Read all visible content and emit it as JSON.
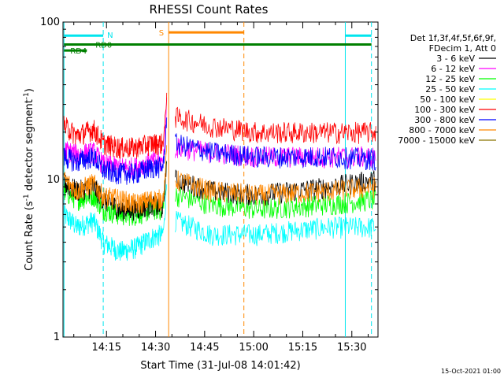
{
  "chart_data": {
    "type": "line",
    "title": "RHESSI Count Rates",
    "xlabel": "Start Time (31-Jul-08 14:01:42)",
    "ylabel_main": "Count Rate (s",
    "ylabel_sup": "-1",
    "ylabel_mid": " detector segment",
    "ylabel_sup2": "-1",
    "ylabel_end": ")",
    "y_scale": "log",
    "ylim": [
      1,
      100
    ],
    "x_ticks": [
      "14:15",
      "14:30",
      "14:45",
      "15:00",
      "15:15",
      "15:30"
    ],
    "x_tick_minutes": [
      15,
      30,
      45,
      60,
      75,
      90
    ],
    "xlim_minutes": [
      1.7,
      98.0
    ],
    "y_ticks": [
      "1",
      "10",
      "100"
    ],
    "y_tick_values": [
      1,
      10,
      100
    ],
    "timestamp": "15-Oct-2021 01:00",
    "legend_header": [
      "Det 1f,3f,4f,5f,6f,9f,",
      "FDecim 1, Att 0"
    ],
    "series": [
      {
        "name": "3 - 6 keV",
        "color": "#000000",
        "values": [
          9.5,
          8.5,
          9.0,
          7.5,
          6.5,
          6.5,
          7.0,
          6.5,
          10.0,
          8.5,
          8.0,
          9.0,
          10.0
        ]
      },
      {
        "name": "6 - 12 keV",
        "color": "#ff00ff",
        "values": [
          15.5,
          14.5,
          15.0,
          12.5,
          12.0,
          12.0,
          13.0,
          13.0,
          16.0,
          15.0,
          14.0,
          14.0,
          14.0
        ]
      },
      {
        "name": "12 - 25 keV",
        "color": "#00ff00",
        "values": [
          8.5,
          7.5,
          8.0,
          6.5,
          6.0,
          6.0,
          6.5,
          6.5,
          8.0,
          7.0,
          6.5,
          7.0,
          7.5
        ]
      },
      {
        "name": "25 - 50 keV",
        "color": "#00ffff",
        "values": [
          6.0,
          5.0,
          5.5,
          4.0,
          3.5,
          3.7,
          4.3,
          4.5,
          5.5,
          4.5,
          4.5,
          5.0,
          5.0
        ]
      },
      {
        "name": "50 - 100 keV",
        "color": "#ffff00",
        "values": []
      },
      {
        "name": "100 - 300 keV",
        "color": "#ff0000",
        "values": [
          22.0,
          19.0,
          21.0,
          17.0,
          16.0,
          16.0,
          17.0,
          17.0,
          25.0,
          22.0,
          20.0,
          20.0,
          20.0
        ]
      },
      {
        "name": "300 - 800 keV",
        "color": "#0000ff",
        "values": [
          14.0,
          13.0,
          14.0,
          11.5,
          11.0,
          11.0,
          12.0,
          12.0,
          17.0,
          15.0,
          14.0,
          14.0,
          13.5
        ]
      },
      {
        "name": "800 - 7000 keV",
        "color": "#ff8800",
        "values": [
          10.0,
          8.5,
          9.5,
          7.8,
          7.5,
          7.0,
          7.5,
          7.5,
          10.0,
          8.5,
          8.0,
          8.5,
          9.0
        ]
      },
      {
        "name": "7000 - 15000 keV",
        "color": "#8b7300",
        "values": []
      }
    ],
    "x_minutes_pre": [
      2,
      6,
      11,
      14,
      19,
      24,
      29,
      32
    ],
    "x_minutes_post": [
      36,
      42,
      50,
      62,
      70
    ],
    "flare_rise": {
      "start_minute": 32,
      "peak_minute": 33.5,
      "peak_value": 38
    },
    "flags": [
      {
        "label": "N",
        "color": "#00e5ee",
        "start_minute": 2,
        "end_minute": 14,
        "level": 82
      },
      {
        "label": "",
        "color": "#00e5ee",
        "start_minute": 88,
        "end_minute": 96,
        "level": 82
      },
      {
        "label": "S",
        "color": "#ff8800",
        "start_minute": 34,
        "end_minute": 57,
        "level": 86
      },
      {
        "label": "RD0",
        "color": "#008000",
        "start_minute": 2,
        "end_minute": 96,
        "level": 72
      },
      {
        "label": "RD4",
        "color": "#008000",
        "start_minute": 2,
        "end_minute": 9,
        "level": 66
      }
    ],
    "vertical_lines": [
      {
        "minute": 2,
        "color": "#00e5ee",
        "style": "solid"
      },
      {
        "minute": 14,
        "color": "#00e5ee",
        "style": "dashed"
      },
      {
        "minute": 34,
        "color": "#ff8800",
        "style": "solid"
      },
      {
        "minute": 57,
        "color": "#ff8800",
        "style": "dashed"
      },
      {
        "minute": 88,
        "color": "#00e5ee",
        "style": "solid"
      },
      {
        "minute": 96,
        "color": "#00e5ee",
        "style": "dashed"
      }
    ],
    "gap_minutes": [
      33.6,
      59.0
    ]
  }
}
